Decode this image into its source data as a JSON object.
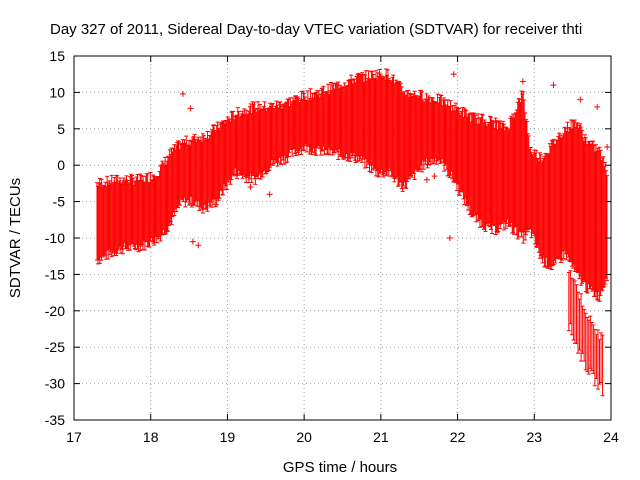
{
  "chart_data": {
    "type": "scatter",
    "title": "Day 327 of 2011, Sidereal Day-to-day VTEC variation (SDTVAR) for receiver thti",
    "xlabel": "GPS time / hours",
    "ylabel": "SDTVAR / TECUs",
    "xlim": [
      17,
      24
    ],
    "ylim": [
      -35,
      15
    ],
    "xticks": [
      17,
      18,
      19,
      20,
      21,
      22,
      23,
      24
    ],
    "yticks": [
      -35,
      -30,
      -25,
      -20,
      -15,
      -10,
      -5,
      0,
      5,
      10,
      15
    ],
    "grid": true,
    "marker": "+",
    "color": "#ff0000",
    "series": [
      {
        "name": "SDTVAR",
        "description_points": "x = GPS hour, y_low / y_high = vertical extent of the dense error-bar band",
        "envelope": [
          {
            "x": 17.3,
            "lo": -13.0,
            "hi": -2.5
          },
          {
            "x": 17.6,
            "lo": -11.5,
            "hi": -2.0
          },
          {
            "x": 17.9,
            "lo": -11.0,
            "hi": -2.0
          },
          {
            "x": 18.1,
            "lo": -10.0,
            "hi": -1.0
          },
          {
            "x": 18.25,
            "lo": -8.0,
            "hi": 1.5
          },
          {
            "x": 18.4,
            "lo": -5.0,
            "hi": 3.0
          },
          {
            "x": 18.55,
            "lo": -5.0,
            "hi": 3.5
          },
          {
            "x": 18.7,
            "lo": -6.0,
            "hi": 4.0
          },
          {
            "x": 18.85,
            "lo": -5.0,
            "hi": 5.0
          },
          {
            "x": 19.1,
            "lo": -1.0,
            "hi": 7.0
          },
          {
            "x": 19.35,
            "lo": -2.0,
            "hi": 8.0
          },
          {
            "x": 19.55,
            "lo": 0.0,
            "hi": 8.0
          },
          {
            "x": 19.75,
            "lo": 1.0,
            "hi": 8.5
          },
          {
            "x": 20.0,
            "lo": 2.5,
            "hi": 9.5
          },
          {
            "x": 20.2,
            "lo": 2.0,
            "hi": 10.0
          },
          {
            "x": 20.45,
            "lo": 1.5,
            "hi": 11.0
          },
          {
            "x": 20.7,
            "lo": 1.0,
            "hi": 12.0
          },
          {
            "x": 20.95,
            "lo": -1.0,
            "hi": 12.5
          },
          {
            "x": 21.1,
            "lo": -1.0,
            "hi": 12.5
          },
          {
            "x": 21.3,
            "lo": -3.0,
            "hi": 10.0
          },
          {
            "x": 21.55,
            "lo": 0.0,
            "hi": 9.5
          },
          {
            "x": 21.75,
            "lo": 1.0,
            "hi": 9.0
          },
          {
            "x": 21.95,
            "lo": -2.0,
            "hi": 8.0
          },
          {
            "x": 22.2,
            "lo": -7.0,
            "hi": 6.5
          },
          {
            "x": 22.45,
            "lo": -9.0,
            "hi": 6.0
          },
          {
            "x": 22.65,
            "lo": -8.0,
            "hi": 5.0
          },
          {
            "x": 22.85,
            "lo": -10.0,
            "hi": 10.0
          },
          {
            "x": 22.95,
            "lo": -9.0,
            "hi": 2.0
          },
          {
            "x": 23.1,
            "lo": -13.0,
            "hi": 1.0
          },
          {
            "x": 23.25,
            "lo": -14.0,
            "hi": 3.0
          },
          {
            "x": 23.4,
            "lo": -12.0,
            "hi": 5.0
          },
          {
            "x": 23.55,
            "lo": -15.0,
            "hi": 6.0
          },
          {
            "x": 23.7,
            "lo": -17.0,
            "hi": 3.0
          },
          {
            "x": 23.85,
            "lo": -18.0,
            "hi": 2.0
          },
          {
            "x": 23.95,
            "lo": -15.0,
            "hi": -1.0
          }
        ],
        "tail": [
          {
            "x": 23.45,
            "lo": -22.0,
            "hi": -14.0
          },
          {
            "x": 23.6,
            "lo": -26.0,
            "hi": -18.0
          },
          {
            "x": 23.75,
            "lo": -29.0,
            "hi": -22.0
          },
          {
            "x": 23.9,
            "lo": -31.0,
            "hi": -24.0
          }
        ],
        "outliers": [
          {
            "x": 18.42,
            "y": 9.8
          },
          {
            "x": 18.52,
            "y": 7.8
          },
          {
            "x": 18.55,
            "y": -10.5
          },
          {
            "x": 18.62,
            "y": -11.0
          },
          {
            "x": 18.88,
            "y": -4.5
          },
          {
            "x": 19.3,
            "y": -3.0
          },
          {
            "x": 19.55,
            "y": -4.0
          },
          {
            "x": 21.6,
            "y": -2.0
          },
          {
            "x": 21.7,
            "y": -1.5
          },
          {
            "x": 21.95,
            "y": 12.5
          },
          {
            "x": 21.9,
            "y": -10.0
          },
          {
            "x": 22.85,
            "y": 11.5
          },
          {
            "x": 23.25,
            "y": 11.0
          },
          {
            "x": 23.6,
            "y": 9.0
          },
          {
            "x": 23.82,
            "y": 8.0
          },
          {
            "x": 23.95,
            "y": 2.5
          }
        ]
      }
    ]
  }
}
